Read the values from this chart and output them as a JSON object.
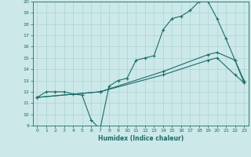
{
  "title": "",
  "xlabel": "Humidex (Indice chaleur)",
  "bg_color": "#cce8e8",
  "line_color": "#1e6b6b",
  "grid_color": "#aad4d4",
  "xlim": [
    -0.5,
    23.5
  ],
  "ylim": [
    9,
    20
  ],
  "xticks": [
    0,
    1,
    2,
    3,
    4,
    5,
    6,
    7,
    8,
    9,
    10,
    11,
    12,
    13,
    14,
    15,
    16,
    17,
    18,
    19,
    20,
    21,
    22,
    23
  ],
  "yticks": [
    9,
    10,
    11,
    12,
    13,
    14,
    15,
    16,
    17,
    18,
    19,
    20
  ],
  "curve1_x": [
    0,
    1,
    2,
    3,
    4,
    5,
    6,
    7,
    8,
    9,
    10,
    11,
    12,
    13,
    14,
    15,
    16,
    17,
    18,
    19,
    20,
    21,
    22,
    23
  ],
  "curve1_y": [
    11.5,
    12.0,
    12.0,
    12.0,
    11.8,
    11.7,
    9.5,
    8.7,
    12.5,
    13.0,
    13.2,
    14.8,
    15.0,
    15.2,
    17.5,
    18.5,
    18.7,
    19.2,
    20.0,
    20.0,
    18.5,
    16.7,
    14.8,
    13.0
  ],
  "curve2_x": [
    0,
    7,
    14,
    19,
    20,
    22,
    23
  ],
  "curve2_y": [
    11.5,
    12.0,
    13.8,
    15.3,
    15.5,
    14.8,
    12.8
  ],
  "curve3_x": [
    0,
    7,
    14,
    19,
    20,
    22,
    23
  ],
  "curve3_y": [
    11.5,
    12.0,
    13.5,
    14.8,
    15.0,
    13.5,
    12.8
  ]
}
